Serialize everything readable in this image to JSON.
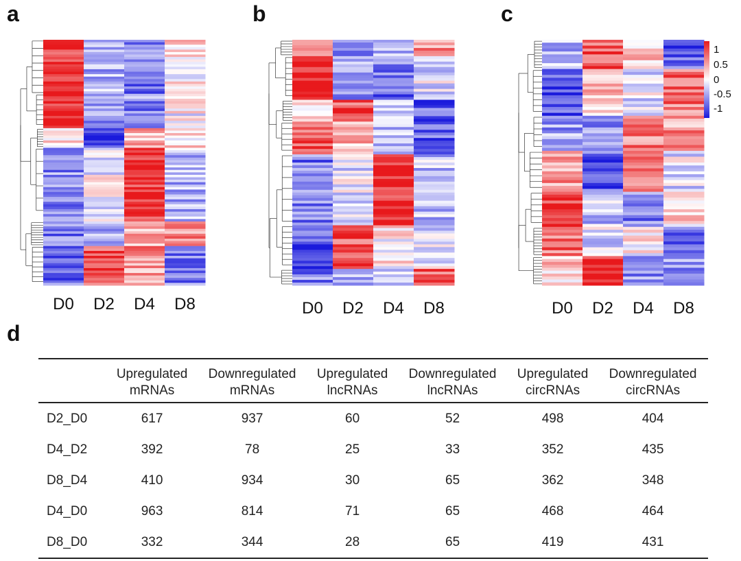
{
  "panel_labels": {
    "a": "a",
    "b": "b",
    "c": "c",
    "d": "d"
  },
  "colorbar": {
    "ticks": [
      "1",
      "0.5",
      "0",
      "-0.5",
      "-1"
    ],
    "colors": {
      "high": "#e8191c",
      "mid": "#ffffff",
      "low": "#1a1adc"
    }
  },
  "chart_data": [
    {
      "type": "heatmap",
      "panel": "a",
      "x": [
        "D0",
        "D2",
        "D4",
        "D8"
      ],
      "range": [
        -1,
        1
      ],
      "clusters": [
        {
          "rows": 22,
          "values": [
            0.85,
            -0.35,
            -0.55,
            0.1
          ]
        },
        {
          "rows": 14,
          "values": [
            0.95,
            -0.45,
            -0.5,
            0.0
          ]
        },
        {
          "rows": 8,
          "values": [
            0.2,
            -0.9,
            0.3,
            0.1
          ]
        },
        {
          "rows": 30,
          "values": [
            -0.5,
            -0.05,
            0.9,
            -0.35
          ]
        },
        {
          "rows": 10,
          "values": [
            -0.6,
            -0.45,
            0.4,
            0.55
          ]
        },
        {
          "rows": 16,
          "values": [
            -0.6,
            0.75,
            0.45,
            -0.55
          ]
        }
      ]
    },
    {
      "type": "heatmap",
      "panel": "b",
      "x": [
        "D0",
        "D2",
        "D4",
        "D8"
      ],
      "range": [
        -1,
        1
      ],
      "clusters": [
        {
          "rows": 6,
          "values": [
            0.5,
            -0.7,
            -0.3,
            0.5
          ]
        },
        {
          "rows": 16,
          "values": [
            0.95,
            -0.45,
            -0.6,
            -0.1
          ]
        },
        {
          "rows": 8,
          "values": [
            0.05,
            0.75,
            -0.1,
            -0.65
          ]
        },
        {
          "rows": 12,
          "values": [
            0.7,
            0.25,
            -0.3,
            -0.65
          ]
        },
        {
          "rows": 26,
          "values": [
            -0.55,
            -0.1,
            0.9,
            -0.3
          ]
        },
        {
          "rows": 16,
          "values": [
            -0.75,
            0.75,
            0.1,
            -0.1
          ]
        },
        {
          "rows": 6,
          "values": [
            -0.5,
            -0.3,
            -0.1,
            0.7
          ]
        }
      ]
    },
    {
      "type": "heatmap",
      "panel": "c",
      "x": [
        "D0",
        "D2",
        "D4",
        "D8"
      ],
      "range": [
        -1,
        1
      ],
      "clusters": [
        {
          "rows": 10,
          "values": [
            -0.3,
            0.75,
            0.3,
            -0.7
          ]
        },
        {
          "rows": 16,
          "values": [
            -0.75,
            0.25,
            -0.1,
            0.6
          ]
        },
        {
          "rows": 12,
          "values": [
            -0.4,
            -0.55,
            0.55,
            0.45
          ]
        },
        {
          "rows": 14,
          "values": [
            0.45,
            -0.7,
            0.45,
            -0.1
          ]
        },
        {
          "rows": 12,
          "values": [
            0.85,
            -0.25,
            -0.5,
            0.15
          ]
        },
        {
          "rows": 10,
          "values": [
            0.6,
            -0.1,
            0.05,
            -0.6
          ]
        },
        {
          "rows": 10,
          "values": [
            0.2,
            0.85,
            -0.45,
            -0.5
          ]
        }
      ]
    },
    {
      "type": "table",
      "panel": "d",
      "columns": [
        "",
        "Upregulated mRNAs",
        "Downregulated mRNAs",
        "Upregulated lncRNAs",
        "Downregulated lncRNAs",
        "Upregulated circRNAs",
        "Downregulated circRNAs"
      ],
      "rows": [
        {
          "label": "D2_D0",
          "values": [
            "617",
            "937",
            "60",
            "52",
            "498",
            "404"
          ]
        },
        {
          "label": "D4_D2",
          "values": [
            "392",
            "78",
            "25",
            "33",
            "352",
            "435"
          ]
        },
        {
          "label": "D8_D4",
          "values": [
            "410",
            "934",
            "30",
            "65",
            "362",
            "348"
          ]
        },
        {
          "label": "D4_D0",
          "values": [
            "963",
            "814",
            "71",
            "65",
            "468",
            "464"
          ]
        },
        {
          "label": "D8_D0",
          "values": [
            "332",
            "344",
            "28",
            "65",
            "419",
            "431"
          ]
        }
      ]
    }
  ],
  "table": {
    "headers": [
      {
        "line1": "Upregulated",
        "line2": "mRNAs"
      },
      {
        "line1": "Downregulated",
        "line2": "mRNAs"
      },
      {
        "line1": "Upregulated",
        "line2": "lncRNAs"
      },
      {
        "line1": "Downregulated",
        "line2": "lncRNAs"
      },
      {
        "line1": "Upregulated",
        "line2": "circRNAs"
      },
      {
        "line1": "Downregulated",
        "line2": "circRNAs"
      }
    ],
    "rows": [
      {
        "label": "D2_D0",
        "values": [
          "617",
          "937",
          "60",
          "52",
          "498",
          "404"
        ]
      },
      {
        "label": "D4_D2",
        "values": [
          "392",
          "78",
          "25",
          "33",
          "352",
          "435"
        ]
      },
      {
        "label": "D8_D4",
        "values": [
          "410",
          "934",
          "30",
          "65",
          "362",
          "348"
        ]
      },
      {
        "label": "D4_D0",
        "values": [
          "963",
          "814",
          "71",
          "65",
          "468",
          "464"
        ]
      },
      {
        "label": "D8_D0",
        "values": [
          "332",
          "344",
          "28",
          "65",
          "419",
          "431"
        ]
      }
    ]
  }
}
